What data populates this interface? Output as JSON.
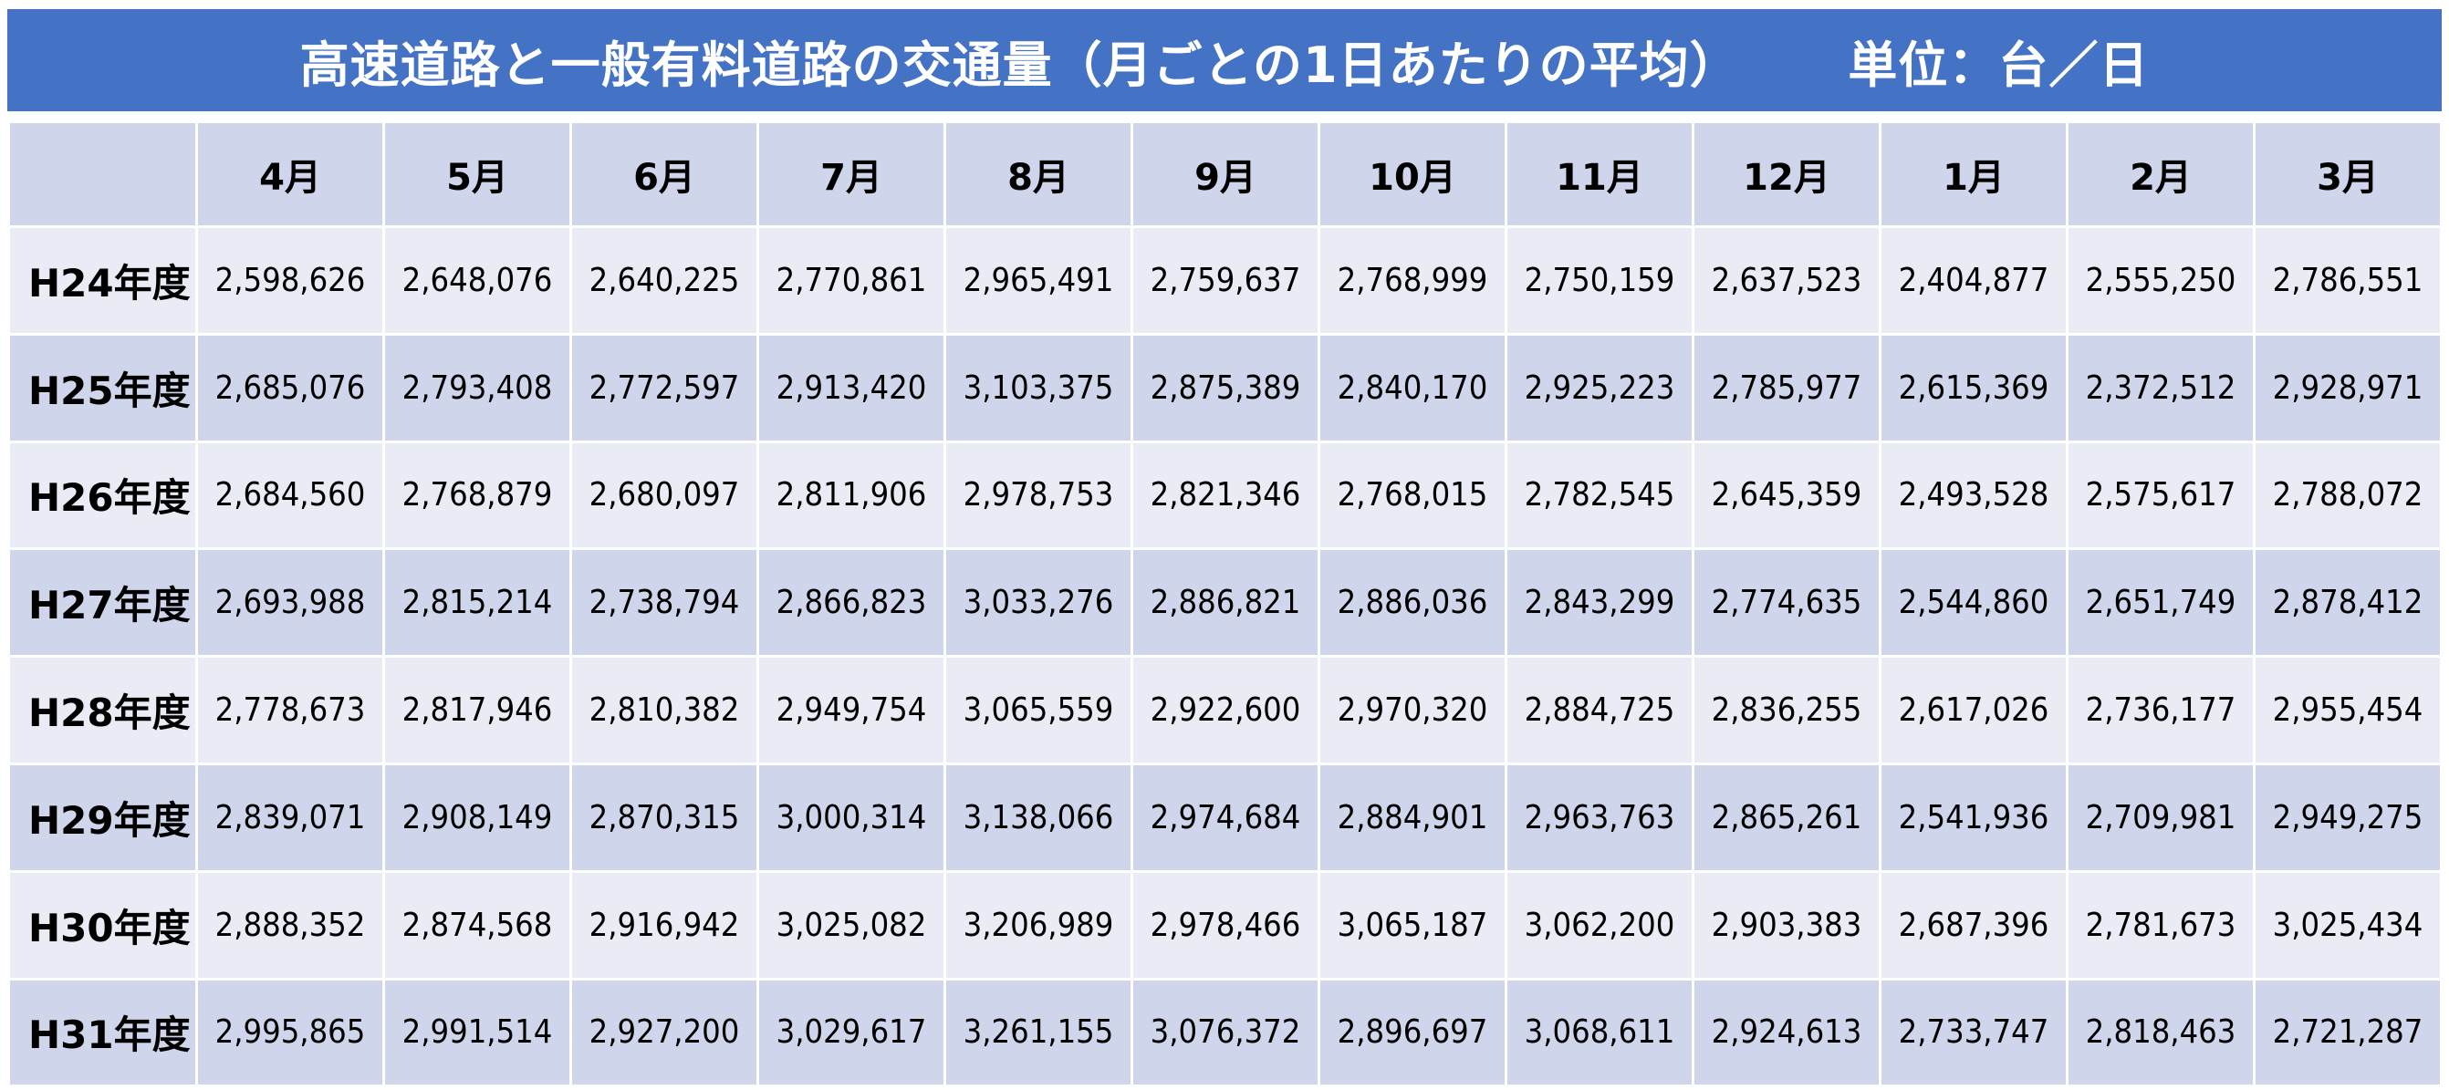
{
  "title": "高速道路と一般有料道路の交通量（月ごとの1日あたりの平均）",
  "unit": "単位：台／日",
  "colors": {
    "title_bg": "#4472c4",
    "header_bg": "#cfd5ea",
    "row_light": "#e9ebf5",
    "row_dark": "#cfd5ea"
  },
  "chart_data": {
    "type": "table",
    "title": "高速道路と一般有料道路の交通量（月ごとの1日あたりの平均）",
    "unit": "単位：台／日",
    "columns": [
      "4月",
      "5月",
      "6月",
      "7月",
      "8月",
      "9月",
      "10月",
      "11月",
      "12月",
      "1月",
      "2月",
      "3月"
    ],
    "rows": [
      {
        "label": "H24年度",
        "values": [
          "2,598,626",
          "2,648,076",
          "2,640,225",
          "2,770,861",
          "2,965,491",
          "2,759,637",
          "2,768,999",
          "2,750,159",
          "2,637,523",
          "2,404,877",
          "2,555,250",
          "2,786,551"
        ]
      },
      {
        "label": "H25年度",
        "values": [
          "2,685,076",
          "2,793,408",
          "2,772,597",
          "2,913,420",
          "3,103,375",
          "2,875,389",
          "2,840,170",
          "2,925,223",
          "2,785,977",
          "2,615,369",
          "2,372,512",
          "2,928,971"
        ]
      },
      {
        "label": "H26年度",
        "values": [
          "2,684,560",
          "2,768,879",
          "2,680,097",
          "2,811,906",
          "2,978,753",
          "2,821,346",
          "2,768,015",
          "2,782,545",
          "2,645,359",
          "2,493,528",
          "2,575,617",
          "2,788,072"
        ]
      },
      {
        "label": "H27年度",
        "values": [
          "2,693,988",
          "2,815,214",
          "2,738,794",
          "2,866,823",
          "3,033,276",
          "2,886,821",
          "2,886,036",
          "2,843,299",
          "2,774,635",
          "2,544,860",
          "2,651,749",
          "2,878,412"
        ]
      },
      {
        "label": "H28年度",
        "values": [
          "2,778,673",
          "2,817,946",
          "2,810,382",
          "2,949,754",
          "3,065,559",
          "2,922,600",
          "2,970,320",
          "2,884,725",
          "2,836,255",
          "2,617,026",
          "2,736,177",
          "2,955,454"
        ]
      },
      {
        "label": "H29年度",
        "values": [
          "2,839,071",
          "2,908,149",
          "2,870,315",
          "3,000,314",
          "3,138,066",
          "2,974,684",
          "2,884,901",
          "2,963,763",
          "2,865,261",
          "2,541,936",
          "2,709,981",
          "2,949,275"
        ]
      },
      {
        "label": "H30年度",
        "values": [
          "2,888,352",
          "2,874,568",
          "2,916,942",
          "3,025,082",
          "3,206,989",
          "2,978,466",
          "3,065,187",
          "3,062,200",
          "2,903,383",
          "2,687,396",
          "2,781,673",
          "3,025,434"
        ]
      },
      {
        "label": "H31年度",
        "values": [
          "2,995,865",
          "2,991,514",
          "2,927,200",
          "3,029,617",
          "3,261,155",
          "3,076,372",
          "2,896,697",
          "3,068,611",
          "2,924,613",
          "2,733,747",
          "2,818,463",
          "2,721,287"
        ]
      }
    ]
  }
}
